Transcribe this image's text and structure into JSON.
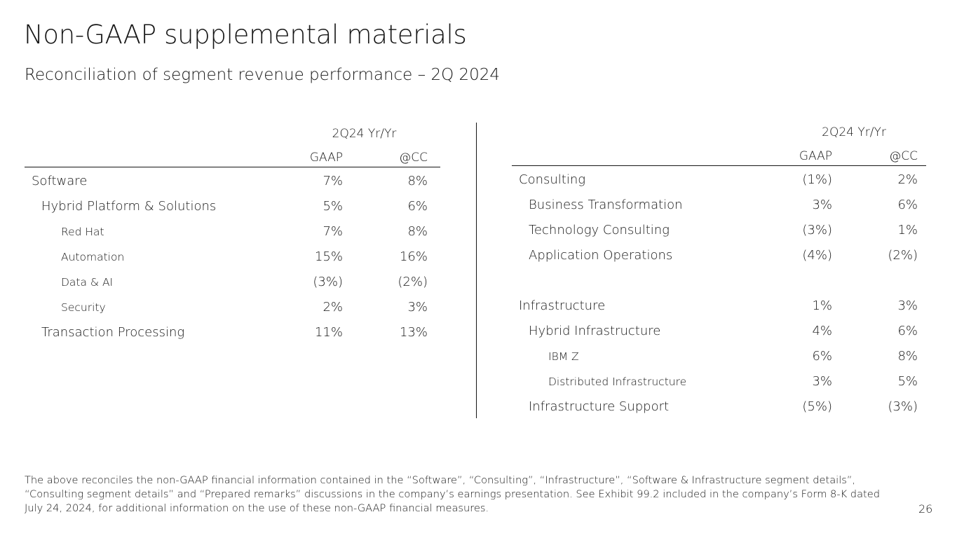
{
  "title": "Non-GAAP supplemental materials",
  "subtitle": "Reconciliation of segment revenue performance – 2Q 2024",
  "left_table": {
    "period_header": "2Q24 Yr/Yr",
    "columns": [
      "GAAP",
      "@CC"
    ],
    "rows": [
      {
        "label": "Software",
        "level": 0,
        "gaap": "7%",
        "cc": "8%"
      },
      {
        "label": "Hybrid Platform & Solutions",
        "level": 1,
        "gaap": "5%",
        "cc": "6%"
      },
      {
        "label": "Red Hat",
        "level": 2,
        "gaap": "7%",
        "cc": "8%"
      },
      {
        "label": "Automation",
        "level": 2,
        "gaap": "15%",
        "cc": "16%"
      },
      {
        "label": "Data & AI",
        "level": 2,
        "gaap": "(3%)",
        "cc": "(2%)"
      },
      {
        "label": "Security",
        "level": 2,
        "gaap": "2%",
        "cc": "3%"
      },
      {
        "label": "Transaction Processing",
        "level": 1,
        "gaap": "11%",
        "cc": "13%"
      }
    ]
  },
  "right_table": {
    "period_header": "2Q24 Yr/Yr",
    "columns": [
      "GAAP",
      "@CC"
    ],
    "rows": [
      {
        "label": "Consulting",
        "level": 0,
        "gaap": "(1%)",
        "cc": "2%"
      },
      {
        "label": "Business Transformation",
        "level": 1,
        "gaap": "3%",
        "cc": "6%"
      },
      {
        "label": "Technology Consulting",
        "level": 1,
        "gaap": "(3%)",
        "cc": "1%"
      },
      {
        "label": "Application Operations",
        "level": 1,
        "gaap": "(4%)",
        "cc": "(2%)"
      },
      {
        "label": "",
        "level": 0,
        "gaap": "",
        "cc": ""
      },
      {
        "label": "Infrastructure",
        "level": 0,
        "gaap": "1%",
        "cc": "3%"
      },
      {
        "label": "Hybrid Infrastructure",
        "level": 1,
        "gaap": "4%",
        "cc": "6%"
      },
      {
        "label": "IBM Z",
        "level": 2,
        "gaap": "6%",
        "cc": "8%"
      },
      {
        "label": "Distributed Infrastructure",
        "level": 2,
        "gaap": "3%",
        "cc": "5%"
      },
      {
        "label": "Infrastructure Support",
        "level": 1,
        "gaap": "(5%)",
        "cc": "(3%)"
      }
    ]
  },
  "footnote": "The above reconciles the non-GAAP financial information contained in the “Software”, “Consulting”, “Infrastructure”, “Software & Infrastructure segment details”, “Consulting segment details” and “Prepared remarks” discussions in the company’s earnings presentation. See Exhibit 99.2 included in the company’s Form 8-K dated July 24, 2024, for additional information on the use of these non-GAAP financial measures.",
  "page_number": "26"
}
